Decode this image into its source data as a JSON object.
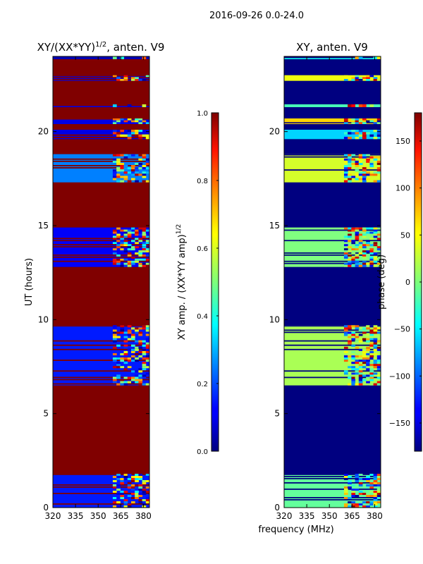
{
  "suptitle": "2016-09-26 0.0-24.0",
  "chart_data": [
    {
      "type": "heatmap",
      "title": "XY/(XX*YY)^(1/2), anten. V9",
      "title_main": "XY/(XX*YY)",
      "title_exp": "1/2",
      "title_tail": ", anten. V9",
      "xlabel": "",
      "ylabel": "UT (hours)",
      "x_ticks": [
        "320",
        "335",
        "350",
        "365",
        "380"
      ],
      "x_tick_values": [
        320,
        335,
        350,
        365,
        380
      ],
      "y_ticks": [
        "0",
        "5",
        "10",
        "15",
        "20"
      ],
      "y_tick_values": [
        0,
        5,
        10,
        15,
        20
      ],
      "xlim": [
        320,
        384
      ],
      "ylim": [
        0,
        24
      ],
      "background_value": 1.0,
      "colormap": "jet",
      "colorbar": {
        "label": "XY amp. / (XX*YY amp)^(1/2)",
        "label_main": "XY amp. / (XX*YY amp)",
        "label_exp": "1/2",
        "range": [
          0.0,
          1.0
        ],
        "ticks": [
          "0.0",
          "0.2",
          "0.4",
          "0.6",
          "0.8",
          "1.0"
        ],
        "tick_values": [
          0.0,
          0.2,
          0.4,
          0.6,
          0.8,
          1.0
        ]
      },
      "bands": [
        {
          "t0": 0.0,
          "t1": 1.8,
          "value": 0.15
        },
        {
          "t0": 6.5,
          "t1": 9.7,
          "value": 0.15
        },
        {
          "t0": 12.8,
          "t1": 14.9,
          "value": 0.12
        },
        {
          "t0": 17.3,
          "t1": 18.8,
          "value": 0.25
        },
        {
          "t0": 19.6,
          "t1": 20.1,
          "value": 0.1
        },
        {
          "t0": 20.4,
          "t1": 20.7,
          "value": 0.1
        },
        {
          "t0": 21.3,
          "t1": 21.45,
          "value": 0.1
        },
        {
          "t0": 22.7,
          "t1": 23.0,
          "value": 0.1
        },
        {
          "t0": 23.85,
          "t1": 24.0,
          "value": 0.05
        }
      ]
    },
    {
      "type": "heatmap",
      "title": "XY, anten. V9",
      "xlabel": "frequency (MHz)",
      "ylabel": "",
      "x_ticks": [
        "320",
        "335",
        "350",
        "365",
        "380"
      ],
      "x_tick_values": [
        320,
        335,
        350,
        365,
        380
      ],
      "y_ticks": [
        "0",
        "5",
        "10",
        "15",
        "20"
      ],
      "y_tick_values": [
        0,
        5,
        10,
        15,
        20
      ],
      "xlim": [
        320,
        384
      ],
      "ylim": [
        0,
        24
      ],
      "background_value": -180,
      "colormap": "jet",
      "colorbar": {
        "label": "phase (deg)",
        "range": [
          -180,
          180
        ],
        "ticks": [
          "−150",
          "−100",
          "−50",
          "0",
          "50",
          "100",
          "150"
        ],
        "tick_values": [
          -150,
          -100,
          -50,
          0,
          50,
          100,
          150
        ]
      },
      "bands": [
        {
          "t0": 0.0,
          "t1": 1.8,
          "value": -10
        },
        {
          "t0": 6.5,
          "t1": 9.7,
          "value": 15
        },
        {
          "t0": 12.8,
          "t1": 14.9,
          "value": 0
        },
        {
          "t0": 17.3,
          "t1": 18.8,
          "value": 30
        },
        {
          "t0": 19.6,
          "t1": 20.1,
          "value": -60
        },
        {
          "t0": 20.4,
          "t1": 20.7,
          "value": 60
        },
        {
          "t0": 21.3,
          "t1": 21.45,
          "value": -20
        },
        {
          "t0": 22.7,
          "t1": 23.0,
          "value": 40
        },
        {
          "t0": 23.85,
          "t1": 24.0,
          "value": -40
        }
      ]
    }
  ]
}
